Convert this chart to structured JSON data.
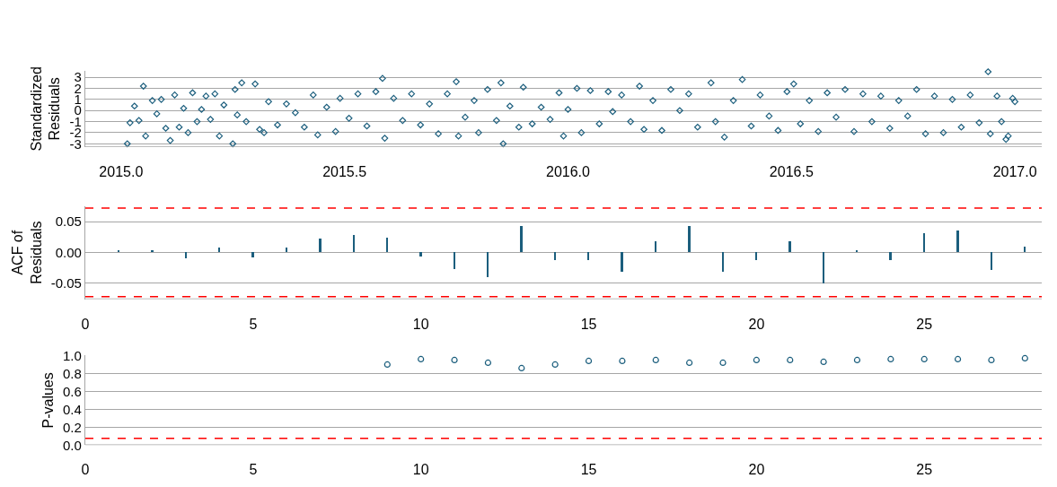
{
  "chart_data": [
    {
      "type": "scatter",
      "ylabel": "Standardized Residuals",
      "marker": "diamond",
      "grid": "y",
      "legend": false,
      "xlim": [
        2014.92,
        2017.06
      ],
      "xticks": [
        {
          "value": 2015,
          "label": "2015.0"
        },
        2015.5,
        {
          "value": 2016,
          "label": "2016.0"
        },
        2016.5,
        {
          "value": 2017,
          "label": "2017.0"
        }
      ],
      "ylim": [
        -3.3,
        3.6
      ],
      "yticks": [
        -3,
        -2,
        -1,
        0,
        1,
        2,
        3
      ],
      "series": [
        {
          "color": "#1b5e7d",
          "x": [
            2015.014,
            2015.02,
            2015.03,
            2015.04,
            2015.05,
            2015.055,
            2015.07,
            2015.08,
            2015.09,
            2015.1,
            2015.11,
            2015.12,
            2015.13,
            2015.14,
            2015.15,
            2015.16,
            2015.17,
            2015.18,
            2015.19,
            2015.2,
            2015.21,
            2015.22,
            2015.23,
            2015.25,
            2015.255,
            2015.26,
            2015.27,
            2015.28,
            2015.3,
            2015.31,
            2015.32,
            2015.33,
            2015.35,
            2015.37,
            2015.39,
            2015.41,
            2015.43,
            2015.44,
            2015.46,
            2015.48,
            2015.49,
            2015.51,
            2015.53,
            2015.55,
            2015.57,
            2015.585,
            2015.59,
            2015.61,
            2015.63,
            2015.65,
            2015.67,
            2015.69,
            2015.71,
            2015.73,
            2015.75,
            2015.755,
            2015.77,
            2015.79,
            2015.8,
            2015.82,
            2015.84,
            2015.85,
            2015.855,
            2015.87,
            2015.89,
            2015.9,
            2015.92,
            2015.94,
            2015.96,
            2015.98,
            2015.99,
            2016.0,
            2016.02,
            2016.03,
            2016.05,
            2016.07,
            2016.09,
            2016.1,
            2016.12,
            2016.14,
            2016.16,
            2016.17,
            2016.19,
            2016.21,
            2016.23,
            2016.25,
            2016.27,
            2016.29,
            2016.32,
            2016.33,
            2016.35,
            2016.37,
            2016.39,
            2016.41,
            2016.43,
            2016.45,
            2016.47,
            2016.49,
            2016.505,
            2016.52,
            2016.54,
            2016.56,
            2016.58,
            2016.6,
            2016.62,
            2016.64,
            2016.66,
            2016.68,
            2016.7,
            2016.72,
            2016.74,
            2016.76,
            2016.78,
            2016.8,
            2016.82,
            2016.84,
            2016.86,
            2016.88,
            2016.9,
            2016.92,
            2016.94,
            2016.945,
            2016.96,
            2016.97,
            2016.98,
            2016.985,
            2016.995,
            2017.0
          ],
          "values": [
            -3.0,
            -1.1,
            0.4,
            -0.9,
            2.2,
            -2.3,
            0.9,
            -0.3,
            1.0,
            -1.6,
            -2.7,
            1.4,
            -1.5,
            0.2,
            -2.0,
            1.6,
            -1.0,
            0.1,
            1.3,
            -0.8,
            1.5,
            -2.3,
            0.5,
            -3.0,
            1.9,
            -0.4,
            2.5,
            -1.0,
            2.4,
            -1.7,
            -2.0,
            0.8,
            -1.3,
            0.6,
            -0.2,
            -1.5,
            1.4,
            -2.2,
            0.3,
            -1.9,
            1.1,
            -0.7,
            1.5,
            -1.4,
            1.7,
            2.9,
            -2.5,
            1.1,
            -0.9,
            1.5,
            -1.3,
            0.6,
            -2.1,
            1.5,
            2.6,
            -2.3,
            -0.6,
            0.9,
            -2.0,
            1.9,
            -0.9,
            2.5,
            -3.0,
            0.4,
            -1.5,
            2.1,
            -1.2,
            0.3,
            -0.8,
            1.6,
            -2.3,
            0.1,
            2.0,
            -2.0,
            1.8,
            -1.2,
            1.7,
            -0.1,
            1.4,
            -1.0,
            2.2,
            -1.7,
            0.9,
            -1.8,
            1.9,
            0.0,
            1.5,
            -1.5,
            2.5,
            -1.0,
            -2.4,
            0.9,
            2.8,
            -1.4,
            1.4,
            -0.5,
            -1.8,
            1.7,
            2.4,
            -1.2,
            0.9,
            -1.9,
            1.6,
            -0.6,
            1.9,
            -1.9,
            1.5,
            -1.0,
            1.3,
            -1.6,
            0.9,
            -0.5,
            1.9,
            -2.1,
            1.3,
            -2.0,
            1.0,
            -1.5,
            1.4,
            -1.1,
            3.5,
            -2.1,
            1.3,
            -1.0,
            -2.6,
            -2.3,
            1.1,
            0.8
          ]
        }
      ]
    },
    {
      "type": "bar",
      "ylabel": "ACF of Residuals",
      "grid": "y",
      "legend": false,
      "xlim": [
        0,
        28.5
      ],
      "xticks": [
        0,
        5,
        10,
        15,
        20,
        25
      ],
      "ylim": [
        -0.076,
        0.075
      ],
      "yticks": [
        {
          "value": -0.05,
          "label": "-0.05"
        },
        {
          "value": 0,
          "label": "0.00"
        },
        0.05
      ],
      "ref_lines": [
        {
          "axis": "y",
          "value": 0.072,
          "color": "#ff0000",
          "line_style": "dashed"
        },
        {
          "axis": "y",
          "value": -0.072,
          "color": "#ff0000",
          "line_style": "dashed"
        }
      ],
      "series": [
        {
          "color": "#1b5e7d",
          "x": [
            1,
            2,
            3,
            4,
            5,
            6,
            7,
            8,
            9,
            10,
            11,
            12,
            13,
            14,
            15,
            16,
            17,
            18,
            19,
            20,
            21,
            22,
            23,
            24,
            25,
            26,
            27,
            28
          ],
          "values": [
            0.003,
            0.004,
            -0.01,
            0.008,
            -0.008,
            0.008,
            0.022,
            0.028,
            0.024,
            -0.007,
            -0.027,
            -0.04,
            0.043,
            -0.012,
            -0.012,
            -0.032,
            0.018,
            0.043,
            -0.032,
            -0.012,
            0.018,
            -0.05,
            0.003,
            -0.012,
            0.031,
            0.036,
            -0.029,
            0.01
          ]
        }
      ]
    },
    {
      "type": "scatter",
      "ylabel": "P-values",
      "marker": "circle",
      "grid": "y",
      "legend": false,
      "xlim": [
        0,
        28.5
      ],
      "xticks": [
        0,
        5,
        10,
        15,
        20,
        25
      ],
      "ylim": [
        0,
        1.0
      ],
      "yticks": [
        {
          "value": 0,
          "label": "0.0"
        },
        0.2,
        0.4,
        0.6,
        0.8,
        {
          "value": 1,
          "label": "1.0"
        }
      ],
      "ref_lines": [
        {
          "axis": "y",
          "value": 0.075,
          "color": "#ff0000",
          "line_style": "dashed"
        }
      ],
      "series": [
        {
          "color": "#1b5e7d",
          "x": [
            9,
            10,
            11,
            12,
            13,
            14,
            15,
            16,
            17,
            18,
            19,
            20,
            21,
            22,
            23,
            24,
            25,
            26,
            27,
            28
          ],
          "values": [
            0.9,
            0.96,
            0.95,
            0.92,
            0.86,
            0.9,
            0.94,
            0.94,
            0.95,
            0.92,
            0.92,
            0.95,
            0.95,
            0.93,
            0.95,
            0.96,
            0.96,
            0.96,
            0.95,
            0.97
          ]
        }
      ]
    }
  ]
}
